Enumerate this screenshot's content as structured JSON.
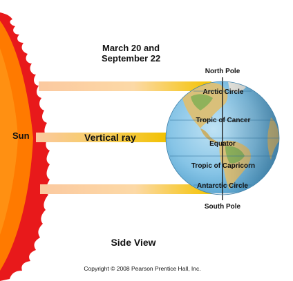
{
  "title": {
    "line1": "March 20 and",
    "line2": "September 22"
  },
  "sun_label": "Sun",
  "ray_labels": {
    "vertical": "Vertical ray"
  },
  "globe_labels": {
    "north_pole": "North Pole",
    "arctic_circle": "Arctic Circle",
    "tropic_of_cancer": "Tropic of Cancer",
    "equator": "Equator",
    "tropic_of_capricorn": "Tropic of Capricorn",
    "antarctic_circle": "Antarctic Circle",
    "south_pole": "South Pole"
  },
  "view_label": "Side View",
  "copyright": "Copyright © 2008 Pearson Prentice Hall, Inc.",
  "colors": {
    "sun_fill": "#ff7a00",
    "sun_flame": "#e8191b",
    "ray_yellow": "#f5c400",
    "ray_pale": "#fde3b8",
    "ocean": "#78bde2",
    "land": "#d9c07a",
    "land_green": "#8fb25a",
    "night_shade": "#3f6d8c"
  }
}
